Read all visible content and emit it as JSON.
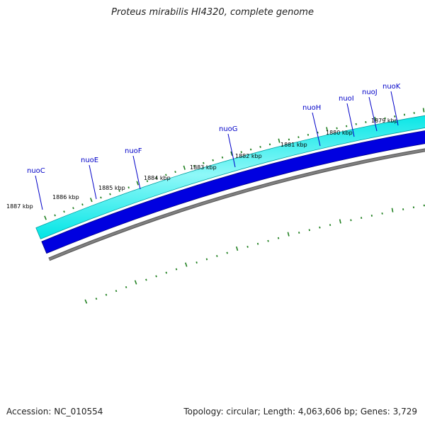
{
  "title": "Proteus mirabilis HI4320, complete genome",
  "accession": "Accession: NC_010554",
  "genome_info": "Topology: circular; Length: 4,063,606 bp; Genes: 3,729",
  "colors": {
    "forward_cds": "#00e5e5",
    "forward_cds_highlight": "#8ff8f8",
    "forward_cds_edge": "#00a0a0",
    "reverse_cds": "#0000e0",
    "reverse_cds_edge": "#000080",
    "backbone": "#808080",
    "gene_label": "#0000c8",
    "tick": "#208020"
  },
  "ticks": [
    {
      "label": "1887 kbp"
    },
    {
      "label": "1886 kbp"
    },
    {
      "label": "1885 kbp"
    },
    {
      "label": "1884 kbp"
    },
    {
      "label": "1883 kbp"
    },
    {
      "label": "1882 kbp"
    },
    {
      "label": "1881 kbp"
    },
    {
      "label": "1880 kbp"
    },
    {
      "label": "1879 kbp"
    }
  ],
  "genes": [
    {
      "name": "nuoC"
    },
    {
      "name": "nuoE"
    },
    {
      "name": "nuoF"
    },
    {
      "name": "nuoG"
    },
    {
      "name": "nuoH"
    },
    {
      "name": "nuoI"
    },
    {
      "name": "nuoJ"
    },
    {
      "name": "nuoK"
    }
  ]
}
